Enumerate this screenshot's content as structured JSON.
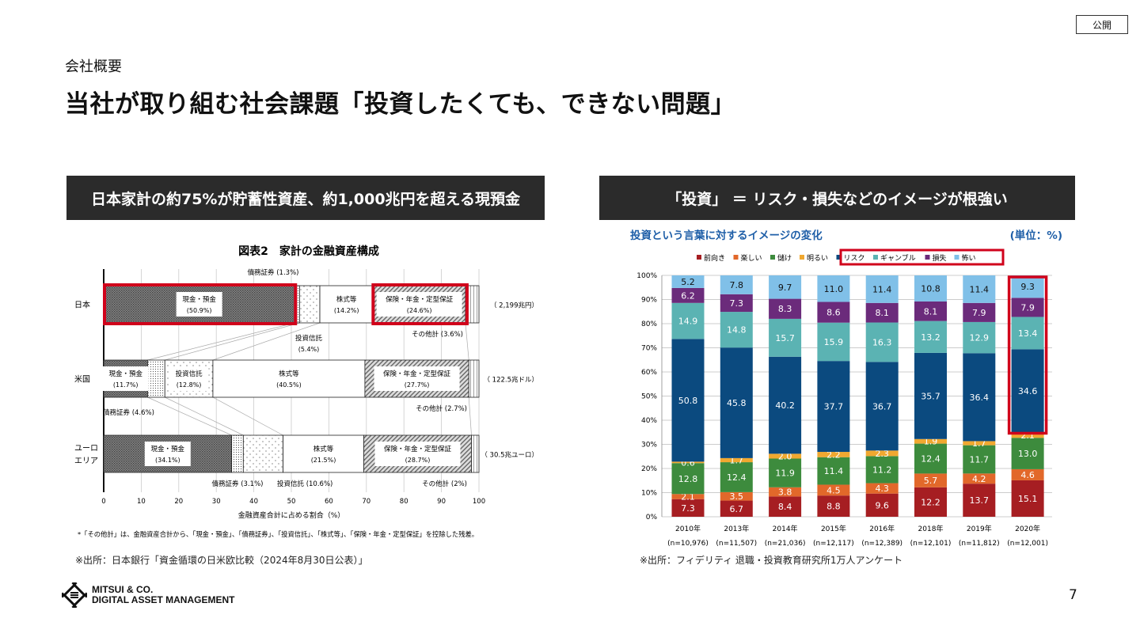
{
  "header": {
    "badge": "公開",
    "section": "会社概要",
    "title": "当社が取り組む社会課題「投資したくても、できない問題」"
  },
  "left_panel": {
    "banner": "日本家計の約75%が貯蓄性資産、約1,000兆円を超える現預金",
    "source": "※出所：日本銀行「資金循環の日米欧比較（2024年8月30日公表）」"
  },
  "right_panel": {
    "banner": "「投資」 ＝ リスク・損失などのイメージが根強い",
    "source": "※出所：フィデリティ 退職・投資教育研究所1万人アンケート"
  },
  "footer": {
    "page_number": "7",
    "logo_line1": "MITSUI & CO.",
    "logo_line2": "DIGITAL ASSET MANAGEMENT"
  },
  "chart_data": [
    {
      "type": "bar",
      "orientation": "horizontal",
      "stacked": true,
      "title": "図表2　家計の金融資産構成",
      "xlabel": "金融資産合計に占める割合（%）",
      "xlim": [
        0,
        100
      ],
      "xticks": [
        "0",
        "10",
        "20",
        "30",
        "40",
        "50",
        "60",
        "70",
        "80",
        "90",
        "100"
      ],
      "categories": [
        "日本",
        "米国",
        "ユーロ\nエリア"
      ],
      "totals": [
        "（ 2,199兆円）",
        "（ 122.5兆ドル）",
        "（ 30.5兆ユーロ）"
      ],
      "series": [
        {
          "name": "現金・預金",
          "values": [
            50.9,
            11.7,
            34.1
          ]
        },
        {
          "name": "債務証券",
          "values": [
            1.3,
            4.6,
            3.1
          ]
        },
        {
          "name": "投資信託",
          "values": [
            5.4,
            12.8,
            10.6
          ]
        },
        {
          "name": "株式等",
          "values": [
            14.2,
            40.5,
            21.5
          ]
        },
        {
          "name": "保険・年金・定型保証",
          "values": [
            24.6,
            27.7,
            28.7
          ]
        },
        {
          "name": "その他計",
          "values": [
            3.6,
            2.7,
            2.0
          ]
        }
      ],
      "highlighted": [
        "日本 現金・預金",
        "日本 保険・年金・定型保証"
      ],
      "footnote": "*「その他計」は、金融資産合計から、「現金・預金」、「債務証券」、「投資信託」、「株式等」、「保険・年金・定型保証」を控除した残差。",
      "highlight_color": "#d0021b"
    },
    {
      "type": "bar",
      "orientation": "vertical",
      "stacked": true,
      "title": "投資という言葉に対するイメージの変化",
      "unit": "(単位：%)",
      "ylim": [
        0,
        100
      ],
      "yticks": [
        "0%",
        "10%",
        "20%",
        "30%",
        "40%",
        "50%",
        "60%",
        "70%",
        "80%",
        "90%",
        "100%"
      ],
      "categories": [
        "2010年",
        "2013年",
        "2014年",
        "2015年",
        "2016年",
        "2018年",
        "2019年",
        "2020年"
      ],
      "sample_sizes": [
        "(n=10,976)",
        "(n=11,507)",
        "(n=21,036)",
        "(n=12,117)",
        "(n=12,389)",
        "(n=12,101)",
        "(n=11,812)",
        "(n=12,001)"
      ],
      "series": [
        {
          "name": "前向き",
          "color": "#a61e22",
          "values": [
            7.3,
            6.7,
            8.4,
            8.8,
            9.6,
            12.2,
            13.7,
            15.1
          ]
        },
        {
          "name": "楽しい",
          "color": "#e2682a",
          "values": [
            2.1,
            3.5,
            3.8,
            4.5,
            4.3,
            5.7,
            4.2,
            4.6
          ]
        },
        {
          "name": "儲け",
          "color": "#3d8b3d",
          "values": [
            12.8,
            12.4,
            11.9,
            11.4,
            11.2,
            12.4,
            11.7,
            13.0
          ]
        },
        {
          "name": "明るい",
          "color": "#f0a830",
          "values": [
            0.6,
            1.7,
            2.0,
            2.2,
            2.3,
            1.9,
            1.7,
            2.1
          ]
        },
        {
          "name": "リスク",
          "color": "#0b4a7f",
          "values": [
            50.8,
            45.8,
            40.2,
            37.7,
            36.7,
            35.7,
            36.4,
            34.6
          ]
        },
        {
          "name": "ギャンブル",
          "color": "#5bb3b3",
          "values": [
            14.9,
            14.8,
            15.7,
            15.9,
            16.3,
            13.2,
            12.9,
            13.4
          ]
        },
        {
          "name": "損失",
          "color": "#6b2b7b",
          "values": [
            6.2,
            7.3,
            8.3,
            8.6,
            8.1,
            8.1,
            7.9,
            7.9
          ]
        },
        {
          "name": "怖い",
          "color": "#80c0e8",
          "values": [
            5.2,
            7.8,
            9.7,
            11.0,
            11.4,
            10.8,
            11.4,
            9.3
          ]
        }
      ],
      "legend": "top",
      "highlighted": [
        "2020年",
        "リスク・ギャンブル・損失・怖い legend"
      ],
      "highlight_color": "#d0021b"
    }
  ]
}
